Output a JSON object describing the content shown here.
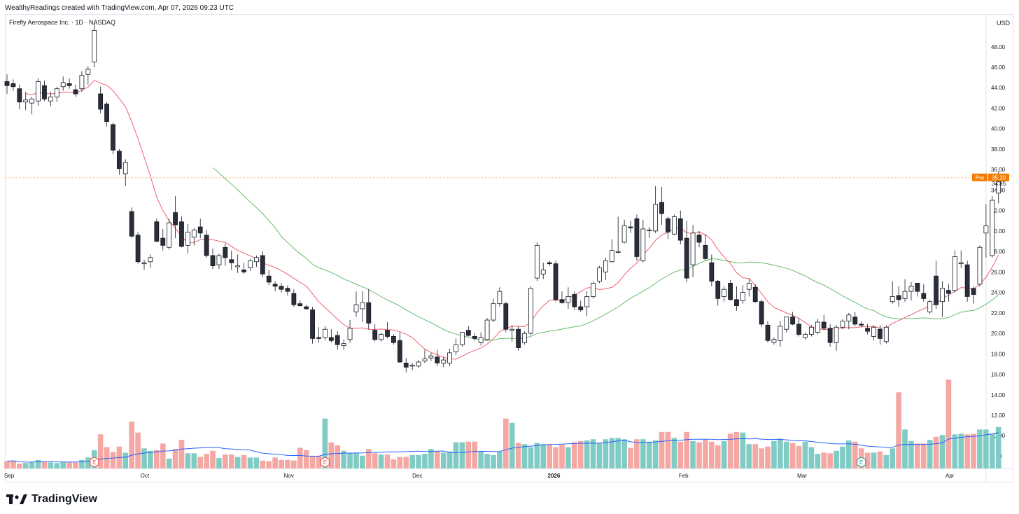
{
  "header": {
    "creator": "WealthyReadings created with TradingView.com, Apr 07, 2026 09:23 UTC"
  },
  "footer": {
    "brand": "TradingView"
  },
  "chart_data": {
    "type": "candlestick",
    "title": "Firefly Aerospace Inc. · 1D · NASDAQ",
    "currency": "USD",
    "ylim": [
      6.8,
      51.2
    ],
    "y_ticks": [
      "48.00",
      "46.00",
      "44.00",
      "42.00",
      "40.00",
      "38.00",
      "36.00",
      "34.00",
      "32.00",
      "30.00",
      "28.00",
      "26.00",
      "24.00",
      "22.00",
      "20.00",
      "18.00",
      "16.00",
      "14.00",
      "12.00",
      "10.00",
      "8.00"
    ],
    "x_labels": [
      {
        "label": "Sep",
        "index": 0,
        "bold": false
      },
      {
        "label": "Oct",
        "index": 22.1,
        "bold": false
      },
      {
        "label": "Nov",
        "index": 45.2,
        "bold": false
      },
      {
        "label": "Dec",
        "index": 65.8,
        "bold": false
      },
      {
        "label": "2026",
        "index": 87.7,
        "bold": true
      },
      {
        "label": "Feb",
        "index": 108.5,
        "bold": false
      },
      {
        "label": "Mar",
        "index": 127.5,
        "bold": false
      },
      {
        "label": "Apr",
        "index": 151.2,
        "bold": false
      }
    ],
    "last_price": {
      "label": "Pre",
      "value": "35.20",
      "axis_value": "34.85",
      "color": "#f57c00"
    },
    "earnings_markers": [
      {
        "label": "E",
        "index": 14
      },
      {
        "label": "E",
        "index": 51
      },
      {
        "label": "E",
        "index": 137
      }
    ],
    "colors": {
      "up": "#ffffff",
      "down": "#2a2e39",
      "outline": "#131722",
      "ma_fast": "#f06070",
      "ma_slow": "#66bb6a",
      "vol_up": "#80cbc4",
      "vol_down": "#f4a7a3",
      "vol_ma": "#2962ff"
    },
    "candles": [
      [
        44.6,
        45.3,
        43.4,
        44.2
      ],
      [
        44.4,
        44.8,
        43.7,
        44.1
      ],
      [
        43.9,
        44.3,
        41.9,
        42.6
      ],
      [
        42.6,
        43.6,
        41.8,
        42.8
      ],
      [
        42.5,
        43.1,
        41.4,
        42.9
      ],
      [
        42.7,
        44.9,
        42.2,
        44.6
      ],
      [
        44.2,
        44.7,
        42.7,
        42.9
      ],
      [
        42.7,
        43.6,
        42.2,
        43.1
      ],
      [
        43.1,
        44.1,
        42.6,
        43.9
      ],
      [
        44.1,
        45.1,
        43.7,
        44.5
      ],
      [
        44.4,
        44.9,
        43.9,
        44.2
      ],
      [
        43.8,
        44.3,
        43.1,
        43.4
      ],
      [
        43.9,
        45.6,
        43.6,
        45.2
      ],
      [
        45.3,
        46.1,
        44.3,
        45.8
      ],
      [
        46.5,
        50.3,
        46.0,
        49.6
      ],
      [
        43.4,
        44.1,
        41.5,
        41.9
      ],
      [
        42.4,
        42.6,
        40.2,
        40.7
      ],
      [
        40.4,
        40.6,
        37.5,
        37.9
      ],
      [
        37.8,
        38.0,
        35.5,
        36.1
      ],
      [
        35.6,
        37.0,
        34.4,
        36.7
      ],
      [
        31.9,
        32.3,
        29.3,
        29.5
      ],
      [
        29.6,
        29.9,
        26.8,
        27.0
      ],
      [
        26.8,
        27.2,
        26.2,
        26.9
      ],
      [
        27.0,
        27.7,
        26.4,
        27.4
      ],
      [
        30.9,
        31.2,
        28.9,
        29.0
      ],
      [
        29.3,
        30.2,
        28.1,
        28.6
      ],
      [
        28.4,
        31.2,
        28.2,
        30.8
      ],
      [
        31.8,
        33.4,
        29.3,
        30.6
      ],
      [
        30.9,
        31.4,
        28.4,
        28.5
      ],
      [
        28.6,
        30.7,
        27.8,
        29.9
      ],
      [
        29.4,
        30.3,
        28.6,
        30.1
      ],
      [
        30.4,
        31.2,
        29.3,
        29.8
      ],
      [
        29.6,
        30.1,
        27.4,
        27.6
      ],
      [
        27.6,
        28.3,
        26.3,
        26.6
      ],
      [
        26.7,
        27.8,
        26.3,
        27.6
      ],
      [
        28.4,
        28.8,
        26.6,
        27.4
      ],
      [
        27.2,
        28.1,
        26.2,
        26.9
      ],
      [
        26.5,
        27.7,
        25.9,
        26.6
      ],
      [
        26.2,
        26.9,
        25.8,
        26.0
      ],
      [
        26.4,
        27.3,
        26.1,
        27.1
      ],
      [
        27.0,
        27.6,
        26.5,
        27.4
      ],
      [
        27.6,
        28.0,
        25.5,
        25.8
      ],
      [
        25.6,
        26.2,
        24.7,
        25.0
      ],
      [
        24.8,
        25.1,
        24.1,
        24.6
      ],
      [
        24.6,
        24.9,
        24.0,
        24.3
      ],
      [
        24.4,
        24.7,
        23.7,
        24.1
      ],
      [
        23.9,
        24.3,
        22.6,
        22.8
      ],
      [
        22.9,
        23.2,
        22.6,
        22.7
      ],
      [
        22.6,
        22.8,
        22.3,
        22.4
      ],
      [
        22.3,
        22.6,
        19.0,
        19.5
      ],
      [
        19.6,
        20.6,
        19.1,
        19.5
      ],
      [
        19.6,
        20.7,
        19.3,
        20.4
      ],
      [
        19.6,
        20.4,
        19.1,
        19.3
      ],
      [
        19.8,
        20.2,
        18.4,
        18.9
      ],
      [
        18.8,
        19.4,
        18.4,
        19.0
      ],
      [
        19.4,
        21.3,
        19.1,
        20.5
      ],
      [
        22.1,
        24.1,
        21.6,
        22.8
      ],
      [
        22.4,
        24.1,
        21.1,
        23.0
      ],
      [
        23.0,
        24.3,
        20.4,
        21.0
      ],
      [
        20.3,
        20.9,
        19.2,
        19.4
      ],
      [
        19.4,
        20.1,
        19.2,
        19.9
      ],
      [
        20.3,
        21.1,
        19.5,
        19.7
      ],
      [
        19.7,
        19.9,
        18.9,
        19.1
      ],
      [
        19.3,
        20.1,
        17.1,
        17.2
      ],
      [
        17.1,
        17.6,
        16.2,
        16.7
      ],
      [
        16.8,
        17.1,
        16.4,
        16.9
      ],
      [
        16.8,
        17.4,
        16.6,
        17.2
      ],
      [
        17.3,
        18.4,
        17.1,
        17.5
      ],
      [
        17.6,
        18.1,
        17.3,
        17.8
      ],
      [
        17.7,
        18.4,
        16.8,
        17.1
      ],
      [
        17.1,
        17.7,
        16.7,
        17.4
      ],
      [
        17.1,
        18.5,
        16.8,
        18.1
      ],
      [
        18.2,
        19.5,
        17.9,
        18.9
      ],
      [
        18.9,
        20.1,
        18.7,
        20.1
      ],
      [
        20.3,
        20.7,
        19.7,
        19.8
      ],
      [
        19.7,
        20.0,
        19.3,
        19.5
      ],
      [
        19.1,
        20.1,
        18.8,
        19.6
      ],
      [
        19.4,
        21.5,
        19.3,
        21.3
      ],
      [
        21.3,
        23.4,
        21.1,
        22.9
      ],
      [
        22.9,
        24.5,
        22.6,
        24.1
      ],
      [
        22.9,
        23.1,
        20.1,
        20.4
      ],
      [
        20.3,
        20.8,
        19.2,
        20.4
      ],
      [
        20.4,
        20.7,
        18.3,
        18.6
      ],
      [
        19.1,
        20.2,
        18.9,
        20.0
      ],
      [
        20.0,
        24.6,
        19.8,
        24.4
      ],
      [
        25.4,
        28.9,
        25.1,
        28.6
      ],
      [
        25.8,
        26.9,
        25.3,
        26.2
      ],
      [
        26.9,
        27.1,
        26.6,
        26.8
      ],
      [
        26.8,
        27.1,
        23.1,
        23.3
      ],
      [
        23.3,
        24.1,
        22.9,
        23.0
      ],
      [
        23.0,
        24.5,
        22.4,
        23.6
      ],
      [
        23.8,
        24.1,
        22.3,
        22.6
      ],
      [
        22.6,
        23.2,
        22.1,
        22.3
      ],
      [
        22.6,
        24.1,
        21.7,
        23.6
      ],
      [
        23.6,
        25.1,
        23.4,
        24.9
      ],
      [
        25.1,
        26.6,
        24.9,
        26.4
      ],
      [
        26.0,
        27.4,
        25.2,
        27.1
      ],
      [
        27.0,
        29.2,
        26.9,
        28.1
      ],
      [
        27.9,
        31.4,
        27.8,
        28.0
      ],
      [
        28.9,
        31.1,
        28.8,
        30.5
      ],
      [
        30.4,
        31.0,
        29.8,
        30.3
      ],
      [
        31.2,
        31.6,
        27.1,
        27.5
      ],
      [
        27.1,
        31.1,
        26.9,
        30.2
      ],
      [
        30.1,
        30.4,
        29.3,
        30.1
      ],
      [
        30.0,
        34.4,
        29.8,
        32.6
      ],
      [
        32.8,
        34.3,
        30.6,
        31.7
      ],
      [
        31.2,
        31.4,
        29.2,
        29.9
      ],
      [
        29.7,
        31.6,
        29.6,
        31.4
      ],
      [
        31.2,
        32.0,
        28.7,
        29.1
      ],
      [
        29.3,
        31.0,
        25.0,
        25.4
      ],
      [
        26.7,
        30.6,
        25.5,
        29.8
      ],
      [
        29.6,
        30.0,
        28.4,
        28.9
      ],
      [
        28.6,
        29.7,
        27.1,
        27.3
      ],
      [
        26.9,
        27.7,
        24.6,
        25.1
      ],
      [
        25.1,
        25.2,
        22.7,
        23.4
      ],
      [
        23.6,
        24.6,
        23.1,
        24.3
      ],
      [
        24.9,
        25.2,
        23.2,
        23.3
      ],
      [
        23.3,
        24.6,
        22.2,
        22.7
      ],
      [
        23.2,
        24.7,
        22.9,
        24.0
      ],
      [
        24.3,
        25.3,
        23.6,
        24.9
      ],
      [
        24.5,
        24.8,
        23.0,
        23.1
      ],
      [
        23.1,
        23.3,
        20.6,
        20.9
      ],
      [
        20.8,
        21.2,
        19.1,
        19.3
      ],
      [
        19.1,
        19.6,
        18.9,
        19.4
      ],
      [
        19.3,
        21.2,
        18.7,
        20.7
      ],
      [
        20.4,
        21.6,
        20.1,
        21.6
      ],
      [
        21.6,
        22.1,
        20.8,
        20.9
      ],
      [
        20.9,
        21.5,
        19.7,
        19.9
      ],
      [
        19.6,
        20.1,
        19.4,
        19.9
      ],
      [
        19.9,
        20.8,
        19.7,
        20.6
      ],
      [
        20.1,
        21.4,
        19.9,
        21.1
      ],
      [
        21.1,
        21.8,
        20.3,
        20.5
      ],
      [
        20.5,
        20.9,
        18.7,
        19.1
      ],
      [
        19.1,
        20.8,
        18.3,
        20.6
      ],
      [
        20.6,
        21.4,
        20.4,
        21.2
      ],
      [
        21.2,
        22.0,
        20.4,
        21.8
      ],
      [
        21.6,
        22.1,
        20.7,
        20.9
      ],
      [
        20.9,
        21.2,
        20.6,
        20.8
      ],
      [
        20.5,
        20.9,
        19.9,
        20.2
      ],
      [
        19.7,
        20.8,
        19.3,
        20.6
      ],
      [
        20.4,
        20.8,
        18.9,
        19.5
      ],
      [
        19.2,
        20.8,
        19.0,
        20.6
      ],
      [
        23.1,
        25.1,
        22.9,
        23.6
      ],
      [
        23.7,
        24.6,
        22.6,
        23.3
      ],
      [
        23.4,
        25.3,
        23.1,
        24.1
      ],
      [
        24.1,
        25.0,
        23.2,
        24.6
      ],
      [
        24.9,
        24.9,
        23.6,
        24.1
      ],
      [
        23.9,
        24.8,
        23.1,
        23.4
      ],
      [
        22.1,
        23.3,
        21.9,
        23.1
      ],
      [
        25.6,
        27.1,
        22.4,
        22.8
      ],
      [
        23.1,
        25.1,
        21.6,
        24.4
      ],
      [
        24.2,
        24.8,
        23.1,
        23.9
      ],
      [
        24.2,
        28.1,
        24.0,
        27.5
      ],
      [
        26.8,
        28.1,
        26.4,
        26.9
      ],
      [
        26.7,
        27.1,
        23.1,
        23.6
      ],
      [
        24.4,
        24.6,
        22.9,
        23.8
      ],
      [
        24.8,
        28.6,
        24.6,
        28.4
      ],
      [
        29.8,
        32.6,
        27.4,
        30.5
      ],
      [
        27.6,
        33.4,
        27.4,
        33.0
      ],
      [
        33.7,
        35.8,
        32.7,
        34.8
      ]
    ],
    "volume": [
      1.2,
      1.3,
      0.8,
      0.9,
      1.1,
      1.4,
      1.1,
      1.0,
      0.9,
      1.1,
      1.0,
      1.0,
      1.4,
      1.8,
      3.0,
      5.6,
      3.5,
      2.7,
      3.6,
      2.6,
      7.7,
      5.9,
      3.3,
      2.9,
      3.0,
      4.1,
      1.6,
      3.2,
      4.7,
      2.5,
      2.5,
      1.9,
      2.4,
      2.9,
      1.7,
      2.3,
      2.3,
      1.9,
      2.2,
      1.8,
      1.8,
      1.3,
      1.2,
      1.8,
      1.4,
      1.4,
      1.3,
      3.4,
      3.0,
      2.0,
      2.1,
      8.2,
      4.3,
      3.8,
      2.9,
      2.5,
      2.6,
      2.1,
      3.2,
      2.5,
      2.3,
      2.3,
      1.5,
      1.9,
      1.9,
      2.2,
      2.2,
      2.4,
      3.2,
      2.9,
      2.6,
      2.8,
      4.3,
      4.3,
      4.4,
      4.4,
      2.8,
      2.4,
      2.2,
      2.8,
      8.2,
      7.5,
      4.2,
      4.0,
      3.5,
      4.2,
      4.0,
      4.0,
      3.5,
      3.9,
      3.5,
      4.3,
      4.5,
      4.6,
      4.8,
      4.2,
      4.8,
      5.0,
      5.0,
      4.8,
      3.4,
      4.8,
      4.8,
      4.4,
      4.6,
      6.0,
      6.0,
      5.0,
      4.4,
      6.0,
      4.5,
      4.3,
      4.8,
      4.4,
      3.8,
      4.5,
      5.7,
      6.0,
      5.9,
      4.0,
      4.0,
      3.3,
      3.6,
      4.5,
      4.9,
      4.4,
      4.2,
      3.7,
      4.4,
      3.5,
      2.4,
      2.6,
      2.5,
      2.9,
      3.6,
      4.6,
      4.4,
      3.3,
      2.6,
      2.6,
      2.8,
      2.2,
      3.3,
      12.5,
      6.4,
      4.5,
      4.1,
      4.1,
      4.7,
      5.2,
      5.5,
      14.6,
      5.6,
      5.7,
      5.6,
      5.7,
      6.4,
      6.4,
      5.6,
      6.8
    ],
    "ma_fast_label": "",
    "ma_slow_label": ""
  }
}
